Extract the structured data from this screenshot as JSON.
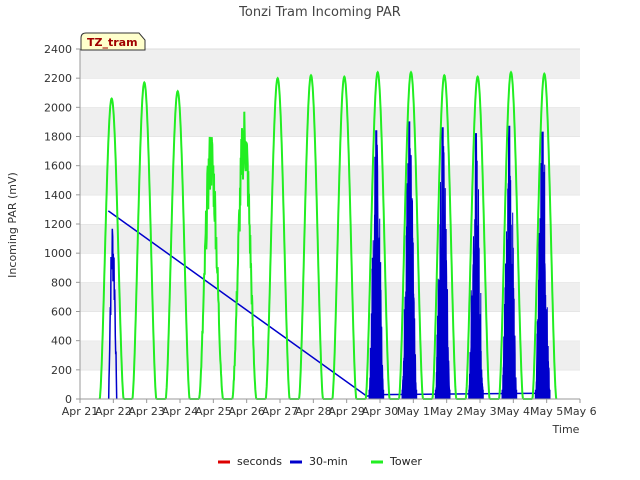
{
  "chart_data": {
    "type": "line",
    "title": "Tonzi Tram Incoming PAR",
    "xlabel": "Time",
    "ylabel": "Incoming PAR (mV)",
    "tag": "TZ_tram",
    "ylim": [
      0,
      2400
    ],
    "yticks": [
      0,
      200,
      400,
      600,
      800,
      1000,
      1200,
      1400,
      1600,
      1800,
      2000,
      2200,
      2400
    ],
    "xlim": [
      0,
      15
    ],
    "xticks": [
      "Apr 21",
      "Apr 22",
      "Apr 23",
      "Apr 24",
      "Apr 25",
      "Apr 26",
      "Apr 27",
      "Apr 28",
      "Apr 29",
      "Apr 30",
      "May 1",
      "May 2",
      "May 3",
      "May 4",
      "May 5",
      "May 6"
    ],
    "grid": "horizontal bands",
    "legend_position": "bottom",
    "series": [
      {
        "name": "seconds",
        "color": "#dd0000",
        "values": []
      },
      {
        "name": "30-min",
        "color": "#0000cc",
        "line": {
          "x": [
            0.85,
            8.6,
            9.0,
            14.0
          ],
          "y": [
            1290,
            20,
            30,
            40
          ]
        },
        "daily_peaks": [
          {
            "day": 0.98,
            "peak": 1290
          },
          {
            "day": 8.89,
            "peak": 1840
          },
          {
            "day": 9.88,
            "peak": 1900
          },
          {
            "day": 10.88,
            "peak": 1860
          },
          {
            "day": 11.88,
            "peak": 1820
          },
          {
            "day": 12.88,
            "peak": 1870
          },
          {
            "day": 13.88,
            "peak": 1830
          }
        ]
      },
      {
        "name": "Tower",
        "color": "#22ee22",
        "daily_peaks": [
          {
            "day": 0.95,
            "peak": 2060
          },
          {
            "day": 1.93,
            "peak": 2170
          },
          {
            "day": 2.93,
            "peak": 2110
          },
          {
            "day": 3.93,
            "peak": 1880
          },
          {
            "day": 4.93,
            "peak": 2040
          },
          {
            "day": 5.93,
            "peak": 2200
          },
          {
            "day": 6.93,
            "peak": 2220
          },
          {
            "day": 7.93,
            "peak": 2210
          },
          {
            "day": 8.93,
            "peak": 2240
          },
          {
            "day": 9.93,
            "peak": 2240
          },
          {
            "day": 10.93,
            "peak": 2220
          },
          {
            "day": 11.93,
            "peak": 2210
          },
          {
            "day": 12.93,
            "peak": 2240
          },
          {
            "day": 13.93,
            "peak": 2230
          }
        ]
      }
    ]
  }
}
